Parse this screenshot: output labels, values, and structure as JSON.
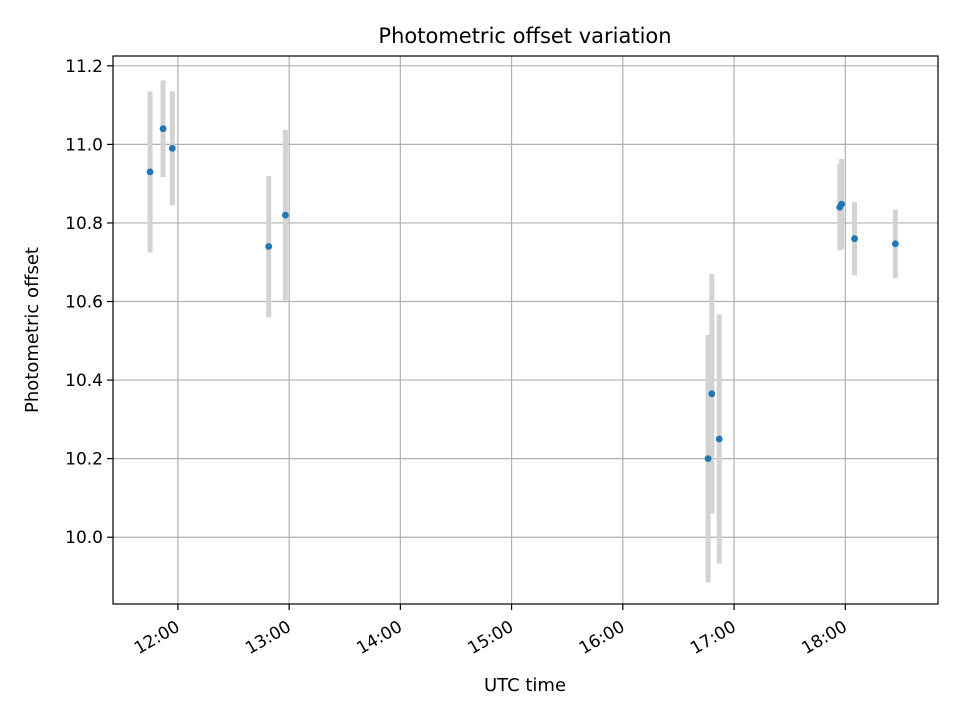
{
  "chart_data": {
    "type": "scatter",
    "title": "Photometric offset variation",
    "xlabel": "UTC time",
    "ylabel": "Photometric offset",
    "grid": true,
    "xlim": [
      "11:25",
      "18:50"
    ],
    "ylim": [
      9.83,
      11.225
    ],
    "x_ticks": [
      "12:00",
      "13:00",
      "14:00",
      "15:00",
      "16:00",
      "17:00",
      "18:00"
    ],
    "y_ticks": [
      "10.0",
      "10.2",
      "10.4",
      "10.6",
      "10.8",
      "11.0",
      "11.2"
    ],
    "colors": {
      "point": "#1f77b4",
      "errorbar": "#d3d3d3",
      "grid": "#b0b0b0"
    },
    "points": [
      {
        "x": "11:45",
        "y": 10.93,
        "yerr": 0.205
      },
      {
        "x": "11:52",
        "y": 11.04,
        "yerr": 0.123
      },
      {
        "x": "11:57",
        "y": 10.99,
        "yerr": 0.145
      },
      {
        "x": "12:49",
        "y": 10.74,
        "yerr": 0.18
      },
      {
        "x": "12:58",
        "y": 10.82,
        "yerr": 0.217
      },
      {
        "x": "16:46",
        "y": 10.2,
        "yerr": 0.315
      },
      {
        "x": "16:48",
        "y": 10.365,
        "yerr": 0.305
      },
      {
        "x": "16:52",
        "y": 10.25,
        "yerr": 0.317
      },
      {
        "x": "17:57",
        "y": 10.84,
        "yerr": 0.11
      },
      {
        "x": "17:58",
        "y": 10.848,
        "yerr": 0.115
      },
      {
        "x": "18:05",
        "y": 10.76,
        "yerr": 0.093
      },
      {
        "x": "18:27",
        "y": 10.747,
        "yerr": 0.087
      }
    ]
  }
}
